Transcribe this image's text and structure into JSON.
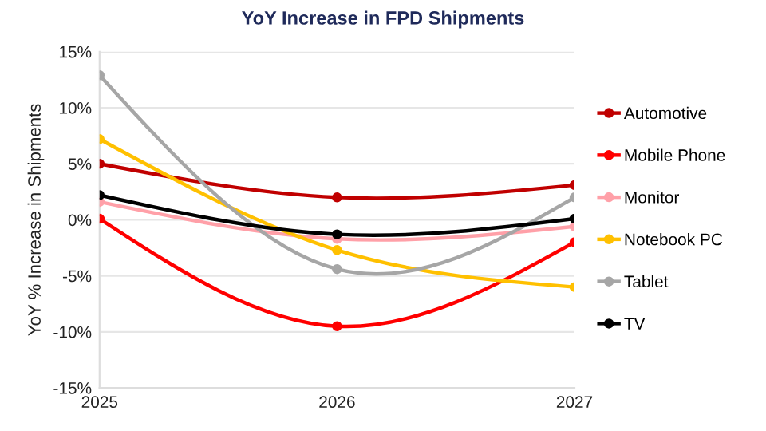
{
  "chart_data": {
    "type": "line",
    "title": "YoY Increase in FPD Shipments",
    "ylabel": "YoY % Increase in Shipments",
    "x": [
      2025,
      2026,
      2027
    ],
    "xlim": [
      2025,
      2027
    ],
    "xticks": [
      2025,
      2026,
      2027
    ],
    "ylim": [
      -15,
      15
    ],
    "yticks": [
      {
        "value": -15,
        "label": "-15%"
      },
      {
        "value": -10,
        "label": "-10%"
      },
      {
        "value": -5,
        "label": "-5%"
      },
      {
        "value": 0,
        "label": "0%"
      },
      {
        "value": 5,
        "label": "5%"
      },
      {
        "value": 10,
        "label": "10%"
      },
      {
        "value": 15,
        "label": "15%"
      }
    ],
    "grid": "y",
    "legend": "right",
    "marker": "circle",
    "line_style": "solid",
    "series": [
      {
        "name": "Automotive",
        "color": "#c00000",
        "values": [
          5.0,
          2.0,
          3.1
        ]
      },
      {
        "name": "Mobile Phone",
        "color": "#ff0000",
        "values": [
          0.1,
          -9.5,
          -2.0
        ]
      },
      {
        "name": "Monitor",
        "color": "#ffa0a8",
        "values": [
          1.6,
          -1.7,
          -0.6
        ]
      },
      {
        "name": "Notebook PC",
        "color": "#ffc000",
        "values": [
          7.2,
          -2.7,
          -6.0
        ]
      },
      {
        "name": "Tablet",
        "color": "#a6a6a6",
        "values": [
          12.9,
          -4.4,
          2.0
        ]
      },
      {
        "name": "TV",
        "color": "#000000",
        "values": [
          2.2,
          -1.3,
          0.1
        ]
      }
    ]
  }
}
